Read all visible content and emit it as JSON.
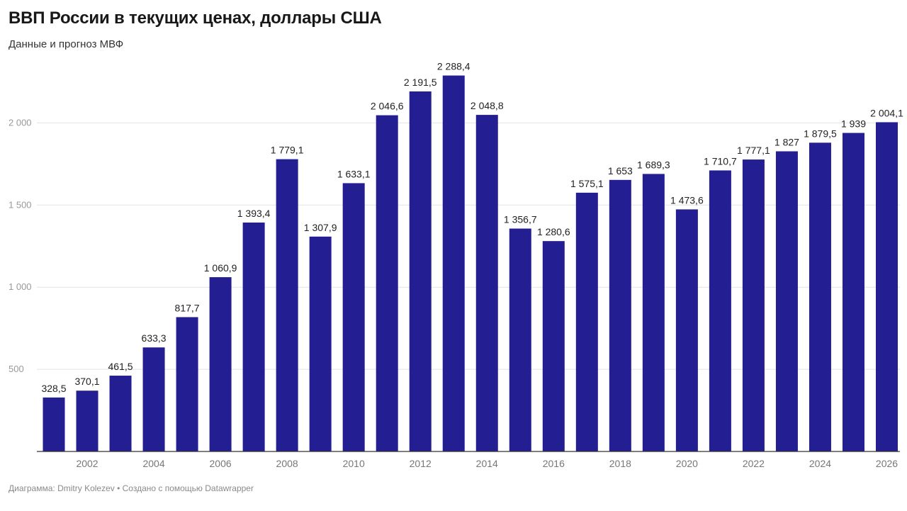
{
  "header": {
    "title": "ВВП России в текущих ценах, доллары США",
    "subtitle": "Данные и прогноз МВФ"
  },
  "footer": {
    "credit": "Диаграмма: Dmitry Kolezev • Создано с помощью Datawrapper"
  },
  "colors": {
    "bar": "#231f92"
  },
  "chart_data": {
    "type": "bar",
    "title": "ВВП России в текущих ценах, доллары США",
    "xlabel": "",
    "ylabel": "",
    "ylim": [
      0,
      2300
    ],
    "yticks": [
      500,
      1000,
      1500,
      2000
    ],
    "ytick_labels": [
      "500",
      "1 000",
      "1 500",
      "2 000"
    ],
    "xtick_years": [
      2002,
      2004,
      2006,
      2008,
      2010,
      2012,
      2014,
      2016,
      2018,
      2020,
      2022,
      2024,
      2026
    ],
    "categories": [
      2001,
      2002,
      2003,
      2004,
      2005,
      2006,
      2007,
      2008,
      2009,
      2010,
      2011,
      2012,
      2013,
      2014,
      2015,
      2016,
      2017,
      2018,
      2019,
      2020,
      2021,
      2022,
      2023,
      2024,
      2025,
      2026
    ],
    "values": [
      328.5,
      370.1,
      461.5,
      633.3,
      817.7,
      1060.9,
      1393.4,
      1779.1,
      1307.9,
      1633.1,
      2046.6,
      2191.5,
      2288.4,
      2048.8,
      1356.7,
      1280.6,
      1575.1,
      1653,
      1689.3,
      1473.6,
      1710.7,
      1777.1,
      1827,
      1879.5,
      1939,
      2004.1
    ],
    "value_labels": [
      "328,5",
      "370,1",
      "461,5",
      "633,3",
      "817,7",
      "1 060,9",
      "1 393,4",
      "1 779,1",
      "1 307,9",
      "1 633,1",
      "2 046,6",
      "2 191,5",
      "2 288,4",
      "2 048,8",
      "1 356,7",
      "1 280,6",
      "1 575,1",
      "1 653",
      "1 689,3",
      "1 473,6",
      "1 710,7",
      "1 777,1",
      "1 827",
      "1 879,5",
      "1 939",
      "2 004,1"
    ],
    "grid": true,
    "legend": "none"
  }
}
